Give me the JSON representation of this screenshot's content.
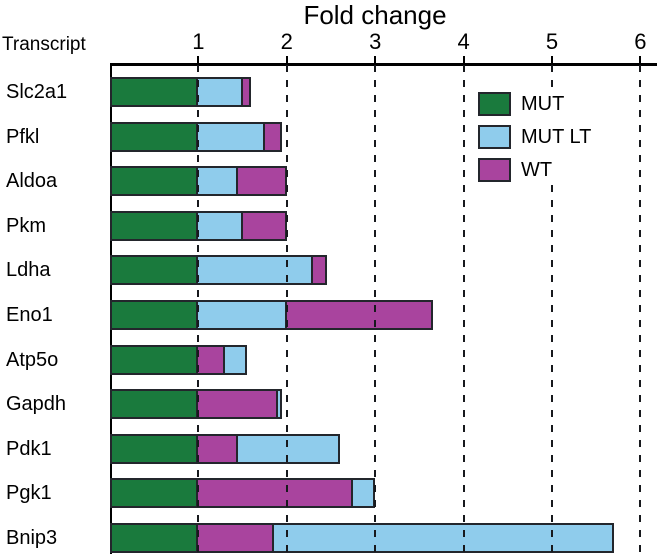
{
  "chart_data": {
    "type": "bar",
    "orientation": "horizontal",
    "overlap": "bars overlap from zero; longest drawn behind",
    "title": "Fold change",
    "transcript_header": "Transcript",
    "categories": [
      "Slc2a1",
      "Pfkl",
      "Aldoa",
      "Pkm",
      "Ldha",
      "Eno1",
      "Atp5o",
      "Gapdh",
      "Pdk1",
      "Pgk1",
      "Bnip3"
    ],
    "series": [
      {
        "name": "MUT",
        "color": "#1a7a3d",
        "values": [
          1.0,
          1.0,
          1.0,
          1.0,
          1.0,
          1.0,
          1.0,
          1.0,
          1.0,
          1.0,
          1.0
        ]
      },
      {
        "name": "MUT LT",
        "color": "#8fccec",
        "values": [
          1.5,
          1.75,
          1.45,
          1.5,
          2.3,
          2.0,
          1.55,
          1.95,
          2.6,
          3.0,
          5.7
        ]
      },
      {
        "name": "WT",
        "color": "#a9449e",
        "values": [
          1.6,
          1.95,
          2.0,
          2.0,
          2.45,
          3.65,
          1.3,
          1.9,
          1.45,
          2.75,
          1.85
        ]
      }
    ],
    "xlim": [
      0,
      6.2
    ],
    "xticks": [
      "1",
      "2",
      "3",
      "4",
      "5",
      "6"
    ],
    "xtick_values": [
      1,
      2,
      3,
      4,
      5,
      6
    ],
    "gridlines": "dashed-vertical",
    "legend_position": "top-right",
    "axis_color": "#000000",
    "bar_border_color": "#23262c"
  }
}
